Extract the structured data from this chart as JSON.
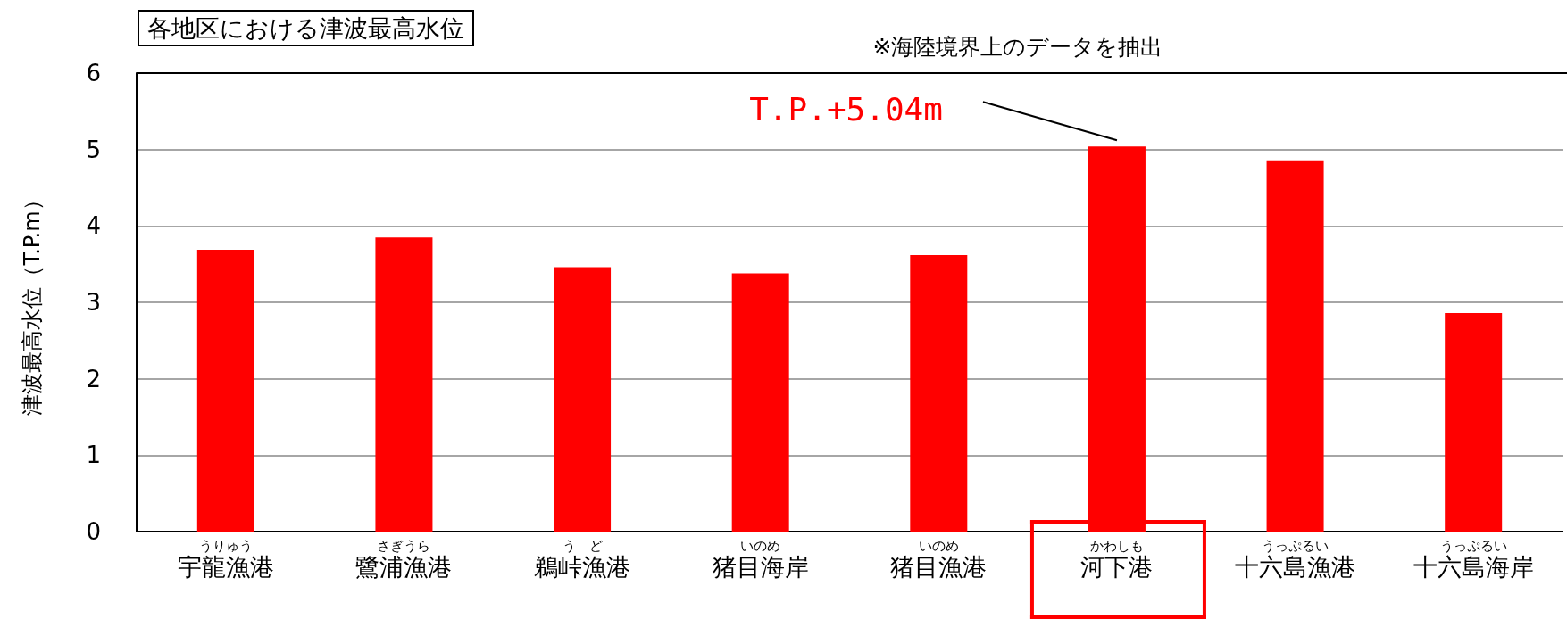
{
  "chart_data": {
    "type": "bar",
    "title": "各地区における津波最高水位",
    "ylabel": "津波最高水位（T.P.m）",
    "categories": [
      "うりゅう宇龍漁港",
      "さぎうら鷺浦漁港",
      "う　ど鵜峠漁港",
      "いのめ猪目海岸",
      "いのめ猪目漁港",
      "かわしも河下港",
      "うっぷるい十六島漁港",
      "うっぷるい十六島海岸"
    ],
    "values": [
      3.69,
      3.85,
      3.46,
      3.38,
      3.62,
      5.04,
      4.86,
      2.86
    ],
    "color": "#ff0000",
    "ylim": [
      0,
      6
    ],
    "yticks": [
      0,
      1,
      2,
      3,
      4,
      5,
      6
    ],
    "grid": "y",
    "annotations": [
      "※海陸境界上のデータを抽出",
      {
        "text": "T.P.+5.04m",
        "x": "かわしも河下港",
        "y": 5.04
      }
    ]
  }
}
